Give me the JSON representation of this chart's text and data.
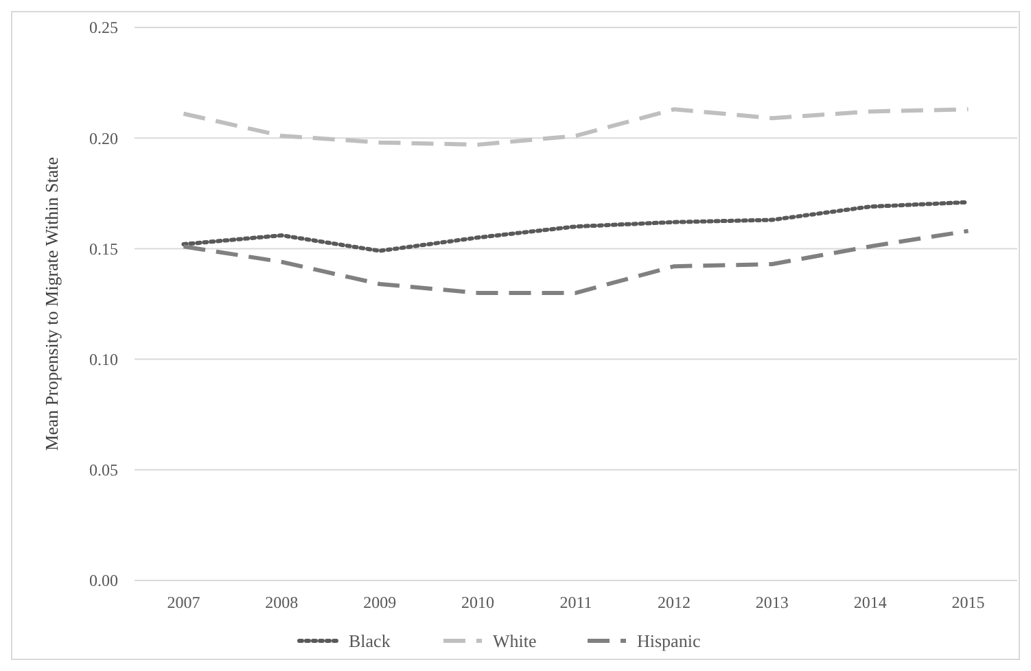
{
  "chart_data": {
    "type": "line",
    "ylabel": "Mean Propensity to Migrate Within State",
    "categories": [
      "2007",
      "2008",
      "2009",
      "2010",
      "2011",
      "2012",
      "2013",
      "2014",
      "2015"
    ],
    "series": [
      {
        "name": "Black",
        "color": "#595959",
        "line_style": "dotted",
        "values": [
          0.152,
          0.156,
          0.149,
          0.155,
          0.16,
          0.162,
          0.163,
          0.169,
          0.171
        ]
      },
      {
        "name": "White",
        "color": "#bfbfbf",
        "line_style": "dashed",
        "values": [
          0.211,
          0.201,
          0.198,
          0.197,
          0.201,
          0.213,
          0.209,
          0.212,
          0.213
        ]
      },
      {
        "name": "Hispanic",
        "color": "#808080",
        "line_style": "dashed",
        "values": [
          0.151,
          0.144,
          0.134,
          0.13,
          0.13,
          0.142,
          0.143,
          0.151,
          0.158
        ]
      }
    ],
    "ylim": [
      0,
      0.25
    ],
    "yticks": [
      {
        "value": 0,
        "label": "0.00"
      },
      {
        "value": 0.05,
        "label": "0.05"
      },
      {
        "value": 0.1,
        "label": "0.10"
      },
      {
        "value": 0.15,
        "label": "0.15"
      },
      {
        "value": 0.2,
        "label": "0.20"
      },
      {
        "value": 0.25,
        "label": "0.25"
      }
    ],
    "grid": "y",
    "legend": "bottom",
    "marker": "none"
  }
}
